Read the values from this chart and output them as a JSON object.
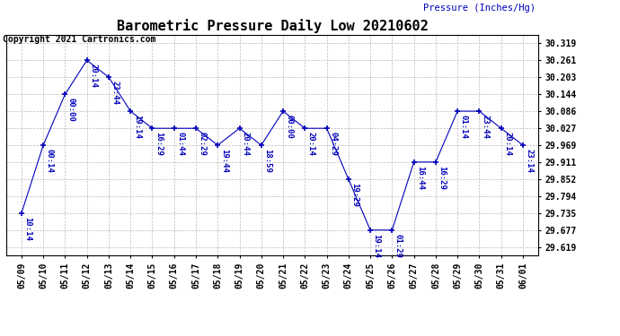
{
  "title": "Barometric Pressure Daily Low 20210602",
  "ylabel": "Pressure (Inches/Hg)",
  "copyright": "Copyright 2021 Cartronics.com",
  "line_color": "#0000bb",
  "background_color": "#ffffff",
  "grid_color": "#bbbbbb",
  "x_labels": [
    "05/09",
    "05/10",
    "05/11",
    "05/12",
    "05/13",
    "05/14",
    "05/15",
    "05/16",
    "05/17",
    "05/18",
    "05/19",
    "05/20",
    "05/21",
    "05/22",
    "05/23",
    "05/24",
    "05/25",
    "05/26",
    "05/27",
    "05/28",
    "05/29",
    "05/30",
    "05/31",
    "06/01"
  ],
  "y_values": [
    29.735,
    29.969,
    30.144,
    30.261,
    30.203,
    30.086,
    30.027,
    30.027,
    30.027,
    29.969,
    30.027,
    29.969,
    30.086,
    30.027,
    30.027,
    29.852,
    29.677,
    29.677,
    29.911,
    29.911,
    30.086,
    30.086,
    30.027,
    29.969
  ],
  "time_labels": [
    "10:14",
    "00:14",
    "00:00",
    "20:14",
    "23:44",
    "19:14",
    "16:29",
    "01:44",
    "02:29",
    "19:44",
    "20:44",
    "18:59",
    "00:00",
    "20:14",
    "04:29",
    "19:29",
    "19:14",
    "01:29",
    "16:44",
    "16:29",
    "01:14",
    "23:44",
    "20:14",
    "23:14"
  ],
  "yticks": [
    29.619,
    29.677,
    29.735,
    29.794,
    29.852,
    29.911,
    29.969,
    30.027,
    30.086,
    30.144,
    30.203,
    30.261,
    30.319
  ],
  "ytick_labels": [
    "29.619",
    "29.677",
    "29.735",
    "29.794",
    "29.852",
    "29.911",
    "29.969",
    "30.027",
    "30.086",
    "30.144",
    "30.203",
    "30.261",
    "30.319"
  ],
  "ylim": [
    29.59,
    30.347
  ],
  "xlim": [
    -0.7,
    23.7
  ],
  "title_fontsize": 11,
  "label_fontsize": 7.5,
  "tick_fontsize": 7,
  "time_label_fontsize": 6.5,
  "copyright_fontsize": 7
}
